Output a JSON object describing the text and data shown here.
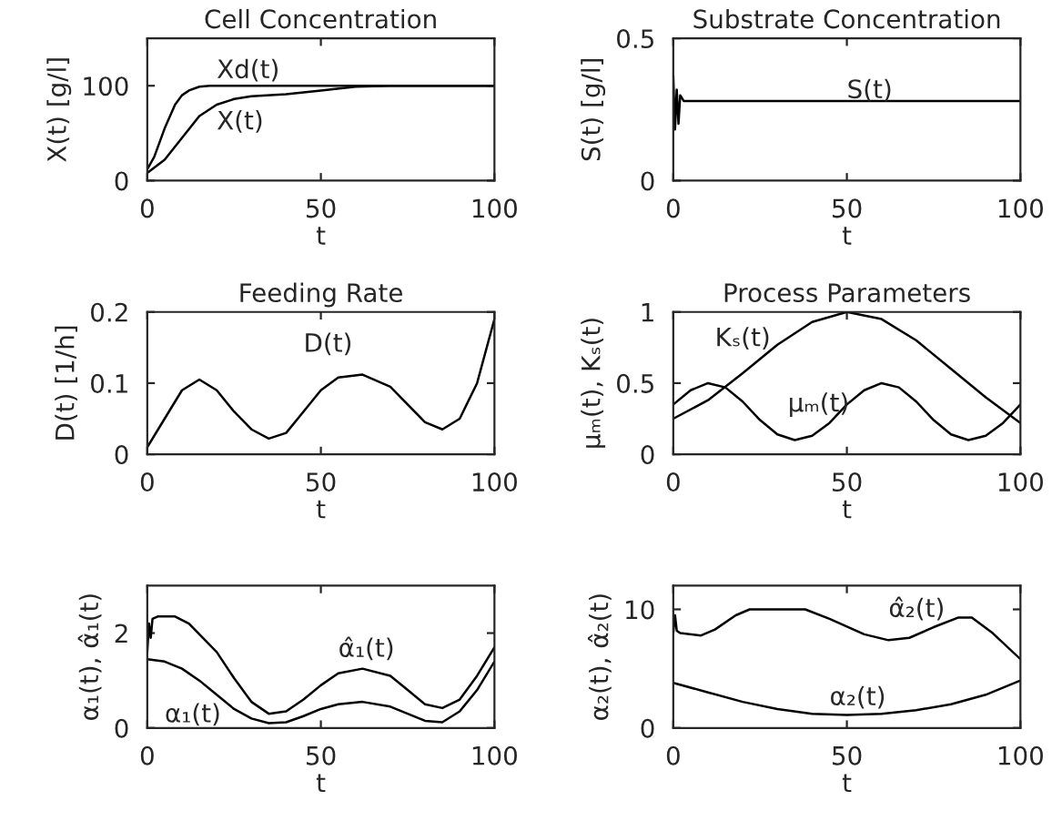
{
  "chart_data": [
    {
      "type": "line",
      "title": "Cell Concentration",
      "xlabel": "t",
      "ylabel": "X(t) [g/l]",
      "xlim": [
        0,
        100
      ],
      "xticks": [
        0,
        50,
        100
      ],
      "ylim": [
        0,
        150
      ],
      "yticks": [
        0,
        100
      ],
      "grid": false,
      "series": [
        {
          "color": "#000000",
          "x": [
            0,
            2,
            5,
            8,
            10,
            12,
            15,
            18,
            30,
            60,
            100
          ],
          "values": [
            12,
            25,
            55,
            80,
            90,
            95,
            99,
            100,
            100,
            100,
            100
          ]
        },
        {
          "color": "#000000",
          "x": [
            0,
            5,
            10,
            15,
            20,
            25,
            30,
            40,
            50,
            60,
            70,
            100
          ],
          "values": [
            8,
            22,
            45,
            68,
            80,
            86,
            89,
            91,
            95,
            99,
            100,
            100
          ]
        }
      ],
      "annotations": [
        "Xd(t)",
        "X(t)"
      ]
    },
    {
      "type": "line",
      "title": "Substrate Concentration",
      "xlabel": "t",
      "ylabel": "S(t) [g/l]",
      "xlim": [
        0,
        100
      ],
      "xticks": [
        0,
        50,
        100
      ],
      "ylim": [
        0,
        0.5
      ],
      "yticks": [
        0,
        0.5
      ],
      "grid": false,
      "series": [
        {
          "color": "#000000",
          "x": [
            0,
            0.5,
            1,
            1.5,
            2,
            3,
            50,
            100
          ],
          "values": [
            0.37,
            0.18,
            0.32,
            0.2,
            0.3,
            0.28,
            0.28,
            0.28
          ]
        }
      ],
      "annotations": [
        "S(t)"
      ]
    },
    {
      "type": "line",
      "title": "Feeding Rate",
      "xlabel": "t",
      "ylabel": "D(t) [1/h]",
      "xlim": [
        0,
        100
      ],
      "xticks": [
        0,
        50,
        100
      ],
      "ylim": [
        0,
        0.2
      ],
      "yticks": [
        0,
        0.1,
        0.2
      ],
      "grid": false,
      "series": [
        {
          "color": "#000000",
          "x": [
            0,
            5,
            10,
            15,
            20,
            25,
            30,
            35,
            40,
            45,
            50,
            55,
            62,
            70,
            75,
            80,
            85,
            90,
            95,
            100
          ],
          "values": [
            0.01,
            0.05,
            0.09,
            0.105,
            0.09,
            0.06,
            0.035,
            0.022,
            0.03,
            0.06,
            0.09,
            0.108,
            0.112,
            0.095,
            0.07,
            0.045,
            0.035,
            0.05,
            0.1,
            0.19
          ]
        }
      ],
      "annotations": [
        "D(t)"
      ]
    },
    {
      "type": "line",
      "title": "Process Parameters",
      "xlabel": "t",
      "ylabel": "μₘ(t), Kₛ(t)",
      "xlim": [
        0,
        100
      ],
      "xticks": [
        0,
        50,
        100
      ],
      "ylim": [
        0,
        1
      ],
      "yticks": [
        0,
        0.5,
        1
      ],
      "grid": false,
      "series": [
        {
          "color": "#000000",
          "x": [
            0,
            10,
            20,
            30,
            40,
            50,
            60,
            70,
            80,
            90,
            100
          ],
          "values": [
            0.25,
            0.38,
            0.57,
            0.77,
            0.93,
            1.0,
            0.95,
            0.8,
            0.6,
            0.4,
            0.22
          ]
        },
        {
          "color": "#000000",
          "x": [
            0,
            5,
            10,
            15,
            20,
            25,
            30,
            35,
            40,
            45,
            50,
            55,
            60,
            65,
            70,
            75,
            80,
            85,
            90,
            95,
            100
          ],
          "values": [
            0.35,
            0.45,
            0.5,
            0.47,
            0.37,
            0.24,
            0.14,
            0.1,
            0.13,
            0.22,
            0.35,
            0.45,
            0.5,
            0.47,
            0.37,
            0.24,
            0.14,
            0.1,
            0.13,
            0.22,
            0.35
          ]
        }
      ],
      "annotations": [
        "Kₛ(t)",
        "μₘ(t)"
      ]
    },
    {
      "type": "line",
      "xlabel": "t",
      "ylabel": "α₁(t), α̂₁(t)",
      "xlim": [
        0,
        100
      ],
      "xticks": [
        0,
        50,
        100
      ],
      "ylim": [
        0,
        3
      ],
      "yticks": [
        0,
        2
      ],
      "grid": false,
      "series": [
        {
          "color": "#000000",
          "x": [
            0,
            0.5,
            1,
            1.5,
            3,
            8,
            12,
            20,
            25,
            30,
            35,
            40,
            45,
            50,
            55,
            62,
            70,
            75,
            80,
            85,
            90,
            95,
            100
          ],
          "values": [
            1.6,
            2.2,
            1.9,
            2.3,
            2.35,
            2.35,
            2.2,
            1.6,
            1.05,
            0.55,
            0.3,
            0.35,
            0.6,
            0.9,
            1.15,
            1.25,
            1.1,
            0.8,
            0.5,
            0.42,
            0.6,
            1.1,
            1.7
          ]
        },
        {
          "color": "#000000",
          "x": [
            0,
            5,
            10,
            15,
            20,
            25,
            30,
            35,
            40,
            45,
            50,
            55,
            62,
            70,
            75,
            80,
            85,
            90,
            95,
            100
          ],
          "values": [
            1.45,
            1.4,
            1.25,
            1.0,
            0.7,
            0.4,
            0.2,
            0.1,
            0.12,
            0.25,
            0.4,
            0.5,
            0.55,
            0.45,
            0.3,
            0.15,
            0.12,
            0.35,
            0.8,
            1.4
          ]
        }
      ],
      "annotations": [
        "α̂₁(t)",
        "α₁(t)"
      ]
    },
    {
      "type": "line",
      "xlabel": "t",
      "ylabel": "α₂(t), α̂₂(t)",
      "xlim": [
        0,
        100
      ],
      "xticks": [
        0,
        50,
        100
      ],
      "ylim": [
        0,
        12
      ],
      "yticks": [
        0,
        10
      ],
      "grid": false,
      "series": [
        {
          "color": "#000000",
          "x": [
            0,
            0.5,
            1,
            2,
            8,
            12,
            18,
            22,
            30,
            38,
            45,
            55,
            62,
            68,
            75,
            82,
            86,
            92,
            100
          ],
          "values": [
            8,
            9.5,
            8.2,
            8,
            7.8,
            8.3,
            9.5,
            10,
            10,
            10,
            9.2,
            7.9,
            7.4,
            7.6,
            8.5,
            9.3,
            9.3,
            8,
            5.8
          ]
        },
        {
          "color": "#000000",
          "x": [
            0,
            10,
            20,
            30,
            40,
            50,
            60,
            70,
            80,
            90,
            100
          ],
          "values": [
            3.8,
            3,
            2.2,
            1.6,
            1.2,
            1.1,
            1.2,
            1.5,
            2.0,
            2.8,
            4.0
          ]
        }
      ],
      "annotations": [
        "α̂₂(t)",
        "α₂(t)"
      ]
    }
  ]
}
